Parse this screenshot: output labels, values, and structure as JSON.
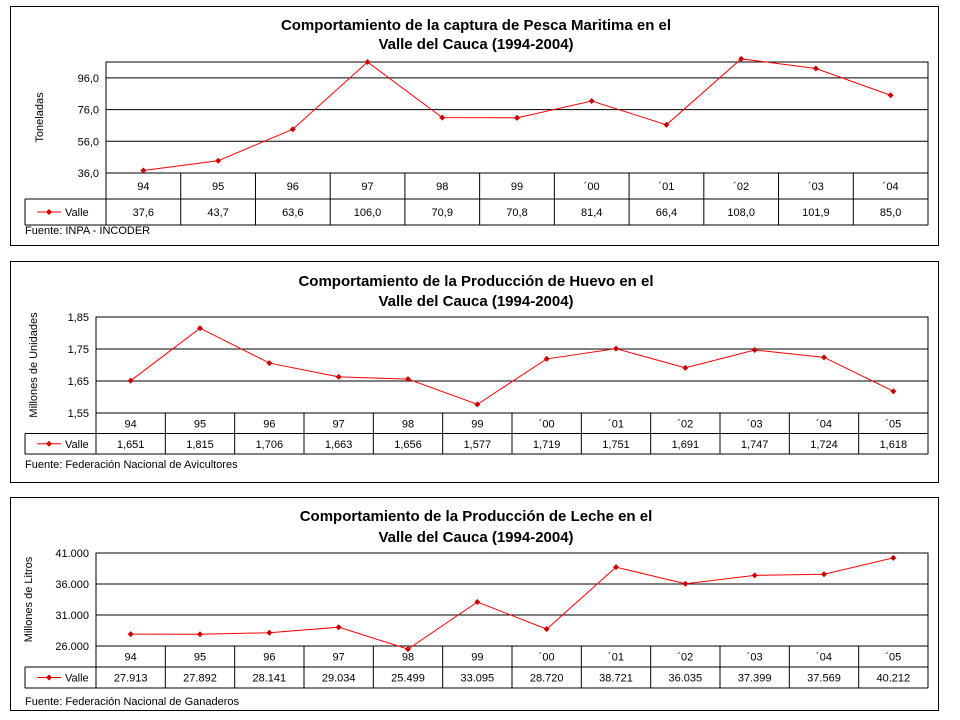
{
  "colors": {
    "series": "#ff0000",
    "marker": "#cc0000",
    "grid": "#000000"
  },
  "chart_data": [
    {
      "type": "line",
      "title_line1": "Comportamiento de la captura de Pesca Maritima en el",
      "title_line2": "Valle del Cauca (1994-2004)",
      "ylabel": "Toneladas",
      "xlabel": "",
      "ylim": [
        36,
        106
      ],
      "yticks": [
        36,
        56,
        76,
        96
      ],
      "ytick_labels": [
        "36,0",
        "56,0",
        "76,0",
        "96,0"
      ],
      "categories": [
        "94",
        "95",
        "96",
        "97",
        "98",
        "99",
        "´00",
        "´01",
        "´02",
        "´03",
        "´04"
      ],
      "series": [
        {
          "name": "Valle",
          "values": [
            37.6,
            43.7,
            63.6,
            106.0,
            70.9,
            70.8,
            81.4,
            66.4,
            108.0,
            101.9,
            85.0
          ],
          "labels": [
            "37,6",
            "43,7",
            "63,6",
            "106,0",
            "70,9",
            "70,8",
            "81,4",
            "66,4",
            "108,0",
            "101,9",
            "85,0"
          ]
        }
      ],
      "source": "Fuente:  INPA - INCODER",
      "grid": true,
      "legend": "data-table"
    },
    {
      "type": "line",
      "title_line1": "Comportamiento de la Producción de Huevo en el",
      "title_line2": "Valle del Cauca (1994-2004)",
      "ylabel": "Millones de Unidades",
      "xlabel": "",
      "ylim": [
        1.55,
        1.85
      ],
      "yticks": [
        1.55,
        1.65,
        1.75,
        1.85
      ],
      "ytick_labels": [
        "1,55",
        "1,65",
        "1,75",
        "1,85"
      ],
      "categories": [
        "94",
        "95",
        "96",
        "97",
        "98",
        "99",
        "´00",
        "´01",
        "´02",
        "´03",
        "´04",
        "´05"
      ],
      "series": [
        {
          "name": "Valle",
          "values": [
            1.651,
            1.815,
            1.706,
            1.663,
            1.656,
            1.577,
            1.719,
            1.751,
            1.691,
            1.747,
            1.724,
            1.618
          ],
          "labels": [
            "1,651",
            "1,815",
            "1,706",
            "1,663",
            "1,656",
            "1,577",
            "1,719",
            "1,751",
            "1,691",
            "1,747",
            "1,724",
            "1,618"
          ]
        }
      ],
      "source": "Fuente:  Federación Nacional de Avicultores",
      "grid": true,
      "legend": "data-table"
    },
    {
      "type": "line",
      "title_line1": "Comportamiento de la Producción de Leche en el",
      "title_line2": "Valle del Cauca (1994-2004)",
      "ylabel": "Millones de Litros",
      "xlabel": "",
      "ylim": [
        26000,
        41000
      ],
      "yticks": [
        26000,
        31000,
        36000,
        41000
      ],
      "ytick_labels": [
        "26.000",
        "31.000",
        "36.000",
        "41.000"
      ],
      "categories": [
        "94",
        "95",
        "96",
        "97",
        "98",
        "99",
        "´00",
        "´01",
        "´02",
        "´03",
        "´04",
        "´05"
      ],
      "series": [
        {
          "name": "Valle",
          "values": [
            27913,
            27892,
            28141,
            29034,
            25499,
            33095,
            28720,
            38721,
            36035,
            37399,
            37569,
            40212
          ],
          "labels": [
            "27.913",
            "27.892",
            "28.141",
            "29.034",
            "25.499",
            "33.095",
            "28.720",
            "38.721",
            "36.035",
            "37.399",
            "37.569",
            "40.212"
          ]
        }
      ],
      "source": "Fuente:  Federación Nacional de Ganaderos",
      "grid": true,
      "legend": "data-table"
    }
  ]
}
